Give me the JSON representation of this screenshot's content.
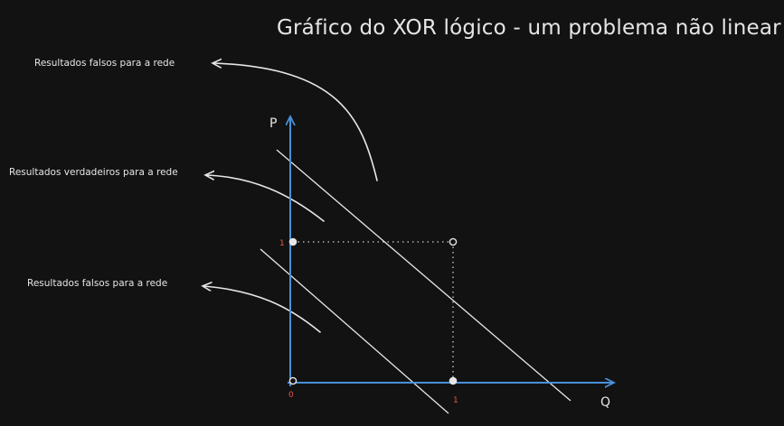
{
  "title": "Gráfico do XOR lógico - um problema não linear",
  "annotations": {
    "top": "Resultados falsos para a rede",
    "middle": "Resultados verdadeiros para a rede",
    "bottom": "Resultados falsos para a rede"
  },
  "axes": {
    "x_label": "Q",
    "y_label": "P",
    "origin_label": "0",
    "x_tick_label": "1",
    "y_tick_label": "1"
  },
  "colors": {
    "background": "#121212",
    "axis": "#4a90d9",
    "tick_label": "#e05a4d",
    "stroke": "#e6e6e6"
  },
  "chart_data": {
    "type": "scatter",
    "points": [
      {
        "q": 0,
        "p": 0,
        "filled": false
      },
      {
        "q": 1,
        "p": 0,
        "filled": true
      },
      {
        "q": 0,
        "p": 1,
        "filled": true
      },
      {
        "q": 1,
        "p": 1,
        "filled": false
      }
    ]
  }
}
